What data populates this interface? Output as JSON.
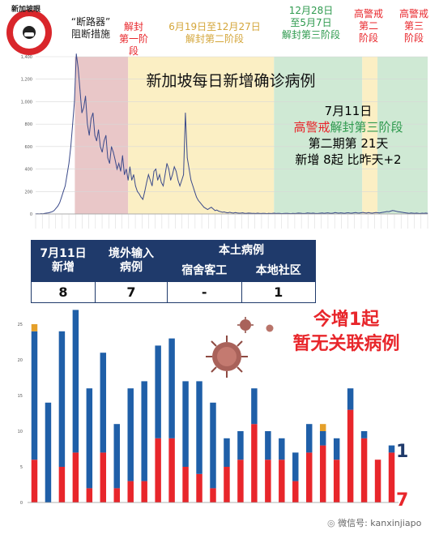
{
  "logo": {
    "text": "新加坡眼"
  },
  "phases": [
    {
      "label": "“断路器”\n阻断措施",
      "color": "#222222"
    },
    {
      "label": "解封\n第一阶段",
      "color": "#e8262b"
    },
    {
      "label": "6月19日至12月27日\n解封第二阶段",
      "color": "#d4a63a"
    },
    {
      "label": "12月28日\n至5月7日\n解封第三阶段",
      "color": "#2e9a4e"
    },
    {
      "label": "高警戒\n第二\n阶段",
      "color": "#e8262b"
    },
    {
      "label": "高警戒\n第三\n阶段",
      "color": "#e8262b"
    }
  ],
  "infobox": {
    "date": "7月11日",
    "line2_red": "高警戒",
    "line2_green": "解封第三阶段",
    "line3": "第二期第 21天",
    "line4": "新增 8起 比昨天+2"
  },
  "table": {
    "h_date": "7月11日\n新增",
    "h_imported": "境外输入\n病例",
    "h_local": "本土病例",
    "h_dorm": "宿舍客工",
    "h_community": "本地社区",
    "v_total": "8",
    "v_imported": "7",
    "v_dorm": "-",
    "v_community": "1"
  },
  "headline": {
    "line1": "今增1起",
    "line2": "暂无关联病例"
  },
  "end_labels": {
    "top": "1",
    "bottom": "7"
  },
  "watermark": "微信号: kanxinjiapo",
  "chart_data": [
    {
      "type": "area",
      "title": "新加坡每日新增确诊病例",
      "ylim": [
        0,
        1400
      ],
      "yticks": [
        0,
        200,
        400,
        600,
        800,
        1000,
        1200,
        1400
      ],
      "series": [
        {
          "values": [
            1,
            2,
            1,
            3,
            2,
            5,
            8,
            10,
            15,
            20,
            30,
            50,
            70,
            100,
            150,
            200,
            250,
            350,
            450,
            600,
            800,
            1000,
            1426,
            1300,
            1100,
            900,
            950,
            1050,
            800,
            700,
            850,
            900,
            700,
            650,
            750,
            600,
            550,
            650,
            700,
            500,
            450,
            600,
            550,
            480,
            400,
            450,
            380,
            520,
            350,
            400,
            300,
            420,
            300,
            350,
            250,
            200,
            180,
            150,
            130,
            200,
            280,
            350,
            300,
            250,
            380,
            400,
            300,
            350,
            280,
            250,
            350,
            450,
            400,
            300,
            350,
            420,
            380,
            300,
            250,
            300,
            350,
            900,
            500,
            400,
            300,
            250,
            200,
            150,
            120,
            100,
            80,
            60,
            50,
            40,
            50,
            60,
            45,
            30,
            35,
            25,
            20,
            15,
            18,
            12,
            10,
            15,
            10,
            8,
            12,
            9,
            7,
            8,
            10,
            6,
            5,
            8,
            7,
            5,
            6,
            4,
            7,
            5,
            4,
            6,
            5,
            3,
            6,
            4,
            5,
            7,
            4,
            6,
            5,
            3,
            4,
            5,
            6,
            4,
            3,
            5,
            4,
            6,
            8,
            7,
            5,
            4,
            6,
            9,
            7,
            5,
            8,
            6,
            4,
            5,
            7,
            9,
            6,
            8,
            10,
            7,
            6,
            8,
            12,
            9,
            7,
            10,
            8,
            6,
            9,
            11,
            8,
            7,
            10,
            12,
            9,
            8,
            11,
            14,
            10,
            8,
            12,
            9,
            7,
            10,
            13,
            11,
            9,
            12,
            15,
            18,
            22,
            20,
            25,
            30,
            28,
            24,
            20,
            18,
            15,
            12,
            10,
            8,
            6,
            9,
            7,
            5,
            8,
            6,
            4,
            7,
            5,
            8,
            6
          ]
        }
      ],
      "phase_bands": [
        {
          "from": 0.0,
          "to": 0.1,
          "color": "#ffffff"
        },
        {
          "from": 0.1,
          "to": 0.236,
          "color": "#e9c7c8"
        },
        {
          "from": 0.236,
          "to": 0.608,
          "color": "#fbefc4"
        },
        {
          "from": 0.608,
          "to": 0.833,
          "color": "#cfe9d4"
        },
        {
          "from": 0.833,
          "to": 0.872,
          "color": "#fbefc4"
        },
        {
          "from": 0.872,
          "to": 1.0,
          "color": "#cfe9d4"
        }
      ]
    },
    {
      "type": "bar",
      "stacked": true,
      "ylim": [
        0,
        25
      ],
      "yticks": [
        0,
        5,
        10,
        15,
        20,
        25
      ],
      "series": [
        {
          "name": "境外输入",
          "color": "#e8262b",
          "values": [
            6,
            0,
            5,
            7,
            2,
            7,
            2,
            3,
            3,
            9,
            9,
            5,
            4,
            2,
            5,
            6,
            11,
            6,
            6,
            3,
            7,
            8,
            6,
            13,
            9,
            6,
            7
          ]
        },
        {
          "name": "本土",
          "color": "#1f5fa8",
          "values": [
            18,
            14,
            19,
            20,
            14,
            14,
            9,
            13,
            14,
            13,
            14,
            12,
            13,
            12,
            4,
            4,
            5,
            4,
            3,
            4,
            4,
            2,
            3,
            3,
            1,
            0,
            1
          ]
        },
        {
          "name": "其他",
          "color": "#e5a02a",
          "values": [
            1,
            0,
            0,
            0,
            0,
            0,
            0,
            0,
            0,
            0,
            0,
            0,
            0,
            0,
            0,
            0,
            0,
            0,
            0,
            0,
            0,
            1,
            0,
            0,
            0,
            0,
            0
          ]
        }
      ]
    }
  ]
}
